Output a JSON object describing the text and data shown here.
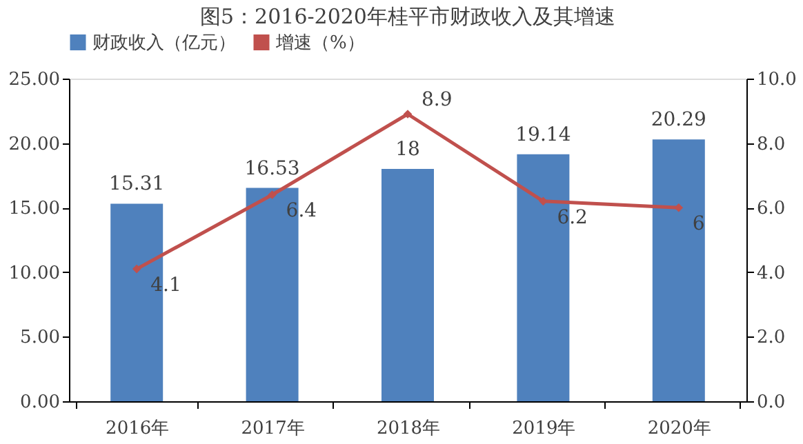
{
  "chart_data": {
    "type": "bar",
    "title": "图5：2016-2020年桂平市财政收入及其增速",
    "categories": [
      "2016年",
      "2017年",
      "2018年",
      "2019年",
      "2020年"
    ],
    "series": [
      {
        "name": "财政收入（亿元）",
        "color": "#4f81bd",
        "values": [
          15.31,
          16.53,
          18,
          19.14,
          20.29
        ]
      },
      {
        "name": "增速（%）",
        "type": "line",
        "axis": "y2",
        "color": "#c0504d",
        "marker": "diamond",
        "values": [
          4.1,
          6.4,
          8.9,
          6.2,
          6
        ]
      }
    ],
    "ylim": [
      0,
      25
    ],
    "yticks": [
      {
        "value": 0,
        "label": "0.00"
      },
      {
        "value": 5,
        "label": "5.00"
      },
      {
        "value": 10,
        "label": "10.00"
      },
      {
        "value": 15,
        "label": "15.00"
      },
      {
        "value": 20,
        "label": "20.00"
      },
      {
        "value": 25,
        "label": "25.00"
      }
    ],
    "y2lim": [
      0,
      10
    ],
    "y2ticks": [
      {
        "value": 0,
        "label": "0.0"
      },
      {
        "value": 2,
        "label": "2.0"
      },
      {
        "value": 4,
        "label": "4.0"
      },
      {
        "value": 6,
        "label": "6.0"
      },
      {
        "value": 8,
        "label": "8.0"
      },
      {
        "value": 10,
        "label": "10.0"
      }
    ],
    "data_labels": true,
    "grid": false,
    "legend": "top"
  }
}
